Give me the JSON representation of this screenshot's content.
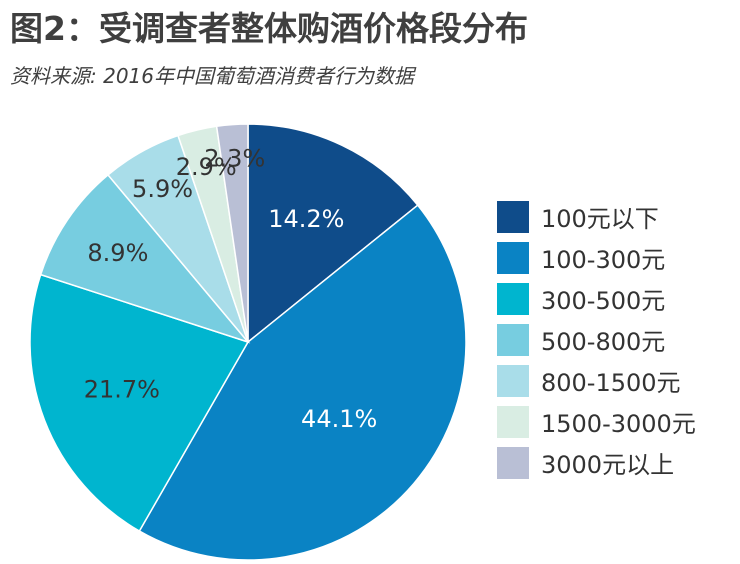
{
  "header": {
    "title": "图2：受调查者整体购酒价格段分布",
    "subtitle": "资料来源: 2016年中国葡萄酒消费者行为数据"
  },
  "chart_data": {
    "type": "pie",
    "title": "图2：受调查者整体购酒价格段分布",
    "categories": [
      "100元以下",
      "100-300元",
      "300-500元",
      "500-800元",
      "800-1500元",
      "1500-3000元",
      "3000元以上"
    ],
    "values": [
      14.2,
      44.1,
      21.7,
      8.9,
      5.9,
      2.9,
      2.3
    ],
    "labels": [
      "14.2%",
      "44.1%",
      "21.7%",
      "8.9%",
      "5.9%",
      "2.9%",
      "2.3%"
    ],
    "colors": [
      "#0f4c8a",
      "#0a83c4",
      "#00b5cf",
      "#77cde0",
      "#a9dde9",
      "#d9ede3",
      "#b9bfd5"
    ],
    "label_colors": [
      "#ffffff",
      "#ffffff",
      "#333333",
      "#333333",
      "#333333",
      "#333333",
      "#333333"
    ],
    "legend": "right",
    "start": "12 o'clock",
    "direction": "clockwise"
  }
}
